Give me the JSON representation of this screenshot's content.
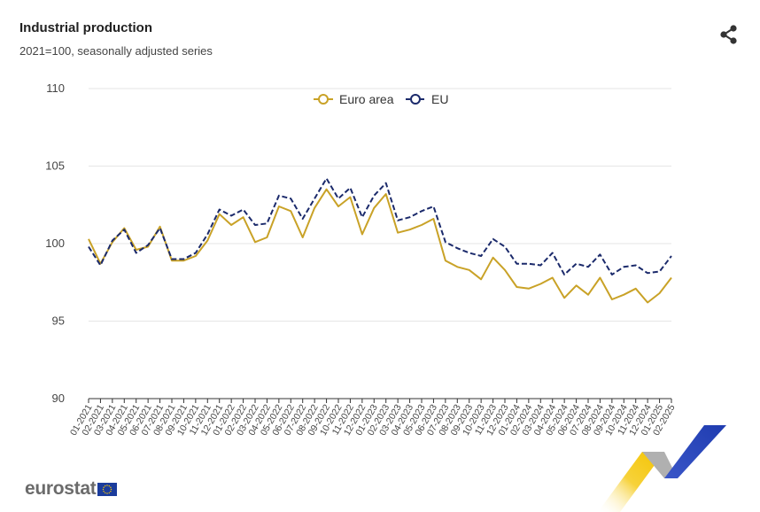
{
  "header": {
    "title": "Industrial production",
    "subtitle": "2021=100, seasonally adjusted series"
  },
  "toolbar": {
    "share_icon": "share-icon"
  },
  "brand": {
    "name": "eurostat",
    "flag_icon": "eu-flag-icon"
  },
  "colors": {
    "euro_area": "#c9a227",
    "eu": "#1b2a6b",
    "grid": "#e6e6e6",
    "axis": "#333333"
  },
  "chart_data": {
    "type": "line",
    "title": "Industrial production",
    "subtitle": "2021=100, seasonally adjusted series",
    "xlabel": "",
    "ylabel": "",
    "ylim": [
      90,
      110
    ],
    "yticks": [
      90,
      95,
      100,
      105,
      110
    ],
    "grid": true,
    "legend_position": "top-center",
    "categories": [
      "01-2021",
      "02-2021",
      "03-2021",
      "04-2021",
      "05-2021",
      "06-2021",
      "07-2021",
      "08-2021",
      "09-2021",
      "10-2021",
      "11-2021",
      "12-2021",
      "01-2022",
      "02-2022",
      "03-2022",
      "04-2022",
      "05-2022",
      "06-2022",
      "07-2022",
      "08-2022",
      "09-2022",
      "10-2022",
      "11-2022",
      "12-2022",
      "01-2023",
      "02-2023",
      "03-2023",
      "04-2023",
      "05-2023",
      "06-2023",
      "07-2023",
      "08-2023",
      "09-2023",
      "10-2023",
      "11-2023",
      "12-2023",
      "01-2024",
      "02-2024",
      "03-2024",
      "04-2024",
      "05-2024",
      "06-2024",
      "07-2024",
      "08-2024",
      "09-2024",
      "10-2024",
      "11-2024",
      "12-2024",
      "01-2025",
      "02-2025"
    ],
    "series": [
      {
        "name": "Euro area",
        "style": "solid",
        "color": "#c9a227",
        "values": [
          100.3,
          98.7,
          100.1,
          101.0,
          99.6,
          99.8,
          101.1,
          98.9,
          98.9,
          99.2,
          100.2,
          101.9,
          101.2,
          101.7,
          100.1,
          100.4,
          102.4,
          102.1,
          100.4,
          102.3,
          103.5,
          102.4,
          103.0,
          100.6,
          102.3,
          103.2,
          100.7,
          100.9,
          101.2,
          101.6,
          98.9,
          98.5,
          98.3,
          97.7,
          99.1,
          98.3,
          97.2,
          97.1,
          97.4,
          97.8,
          96.5,
          97.3,
          96.7,
          97.8,
          96.4,
          96.7,
          97.1,
          96.2,
          96.8,
          97.8
        ]
      },
      {
        "name": "EU",
        "style": "dashed",
        "color": "#1b2a6b",
        "values": [
          99.8,
          98.6,
          100.2,
          100.9,
          99.4,
          99.9,
          101.0,
          99.0,
          99.0,
          99.4,
          100.6,
          102.2,
          101.8,
          102.2,
          101.2,
          101.3,
          103.1,
          102.9,
          101.6,
          102.9,
          104.2,
          102.9,
          103.6,
          101.7,
          103.1,
          103.9,
          101.5,
          101.7,
          102.1,
          102.4,
          100.1,
          99.7,
          99.4,
          99.2,
          100.3,
          99.8,
          98.7,
          98.7,
          98.6,
          99.4,
          98.0,
          98.7,
          98.5,
          99.3,
          98.0,
          98.5,
          98.6,
          98.1,
          98.2,
          99.2
        ]
      }
    ]
  }
}
